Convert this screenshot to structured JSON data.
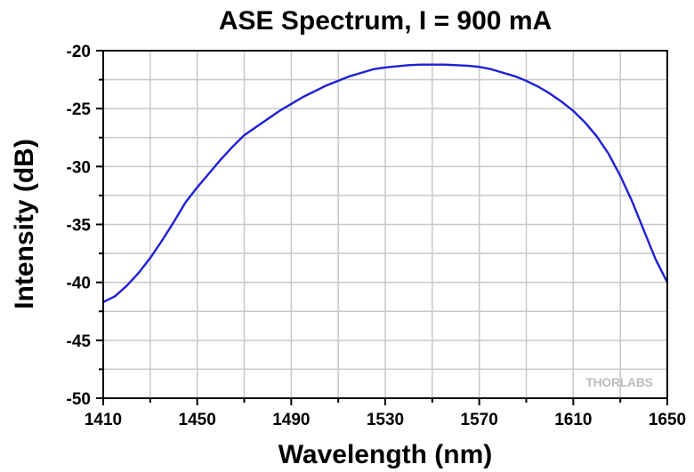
{
  "chart_data": {
    "type": "line",
    "title": "ASE Spectrum, I = 900 mA",
    "xlabel": "Wavelength (nm)",
    "ylabel": "Intensity (dB)",
    "xlim": [
      1410,
      1650
    ],
    "ylim": [
      -50,
      -20
    ],
    "xticks": [
      1410,
      1450,
      1490,
      1530,
      1570,
      1610,
      1650
    ],
    "yticks": [
      -20,
      -25,
      -30,
      -35,
      -40,
      -45,
      -50
    ],
    "grid": true,
    "series": [
      {
        "color": "#1f1fd6",
        "x": [
          1410,
          1415,
          1420,
          1425,
          1430,
          1435,
          1440,
          1445,
          1450,
          1455,
          1460,
          1465,
          1470,
          1475,
          1480,
          1485,
          1490,
          1495,
          1500,
          1505,
          1510,
          1515,
          1520,
          1525,
          1530,
          1535,
          1540,
          1545,
          1550,
          1555,
          1560,
          1565,
          1570,
          1575,
          1580,
          1585,
          1590,
          1595,
          1600,
          1605,
          1610,
          1615,
          1620,
          1625,
          1630,
          1635,
          1640,
          1645,
          1650
        ],
        "y": [
          -41.7,
          -41.2,
          -40.3,
          -39.2,
          -37.9,
          -36.4,
          -34.8,
          -33.1,
          -31.8,
          -30.6,
          -29.4,
          -28.3,
          -27.3,
          -26.6,
          -25.9,
          -25.2,
          -24.6,
          -24.0,
          -23.5,
          -23.0,
          -22.6,
          -22.2,
          -21.9,
          -21.6,
          -21.45,
          -21.35,
          -21.25,
          -21.2,
          -21.2,
          -21.2,
          -21.25,
          -21.3,
          -21.4,
          -21.6,
          -21.9,
          -22.2,
          -22.6,
          -23.1,
          -23.7,
          -24.4,
          -25.2,
          -26.2,
          -27.4,
          -28.9,
          -30.8,
          -33.0,
          -35.5,
          -38.0,
          -40.0
        ]
      }
    ],
    "watermark": "THORLABS"
  }
}
